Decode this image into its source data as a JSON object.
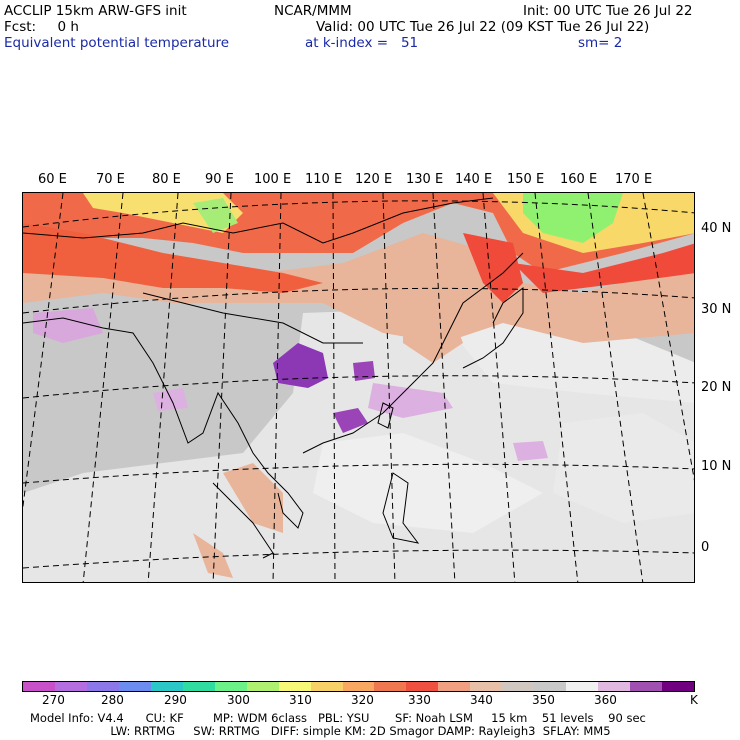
{
  "header": {
    "line1_left": "ACCLIP 15km ARW-GFS init",
    "line1_center": "NCAR/MMM",
    "line1_right": "Init: 00 UTC Tue 26 Jul 22",
    "line2_left": "Fcst:     0 h",
    "line2_right": "Valid: 00 UTC Tue 26 Jul 22 (09 KST Tue 26 Jul 22)",
    "line3_left": "Equivalent potential temperature",
    "line3_center": "at k-index =   51",
    "line3_right": "sm= 2"
  },
  "map": {
    "longitude_labels": [
      "60 E",
      "70 E",
      "80 E",
      "90 E",
      "100 E",
      "110 E",
      "120 E",
      "130 E",
      "140 E",
      "150 E",
      "160 E",
      "170 E"
    ],
    "latitude_labels": [
      "40 N",
      "30 N",
      "20 N",
      "10 N",
      "0"
    ],
    "colors": {
      "background": "#c8c8c8",
      "light": "#ececec",
      "tan": "#e8b49a",
      "orange": "#f06a4a",
      "red": "#f04a3a",
      "yellow": "#f8e070",
      "green": "#90f070",
      "violet": "#8c38b4",
      "lilac": "#d8a8dc"
    }
  },
  "colorbar": {
    "colors": [
      "#c850c8",
      "#b46ee0",
      "#8c78e8",
      "#6c8cf0",
      "#2cc8c8",
      "#30dca0",
      "#6cf088",
      "#b0f070",
      "#f8f878",
      "#f8d068",
      "#f8a860",
      "#f07850",
      "#f05040",
      "#f0a080",
      "#e8c0a8",
      "#d0c8c0",
      "#c8c8c8",
      "#f0f0f0",
      "#e0b8e0",
      "#a050b0",
      "#700080"
    ],
    "tick_labels": [
      "270",
      "280",
      "290",
      "300",
      "310",
      "320",
      "330",
      "340",
      "350",
      "360",
      "K"
    ]
  },
  "footer": {
    "line1": "Model Info: V4.4      CU: KF        MP: WDM 6class   PBL: YSU       SF: Noah LSM     15 km    51 levels    90 sec",
    "line2": "                      LW: RRTMG     SW: RRTMG   DIFF: simple KM: 2D Smagor DAMP: Rayleigh3  SFLAY: MM5"
  }
}
